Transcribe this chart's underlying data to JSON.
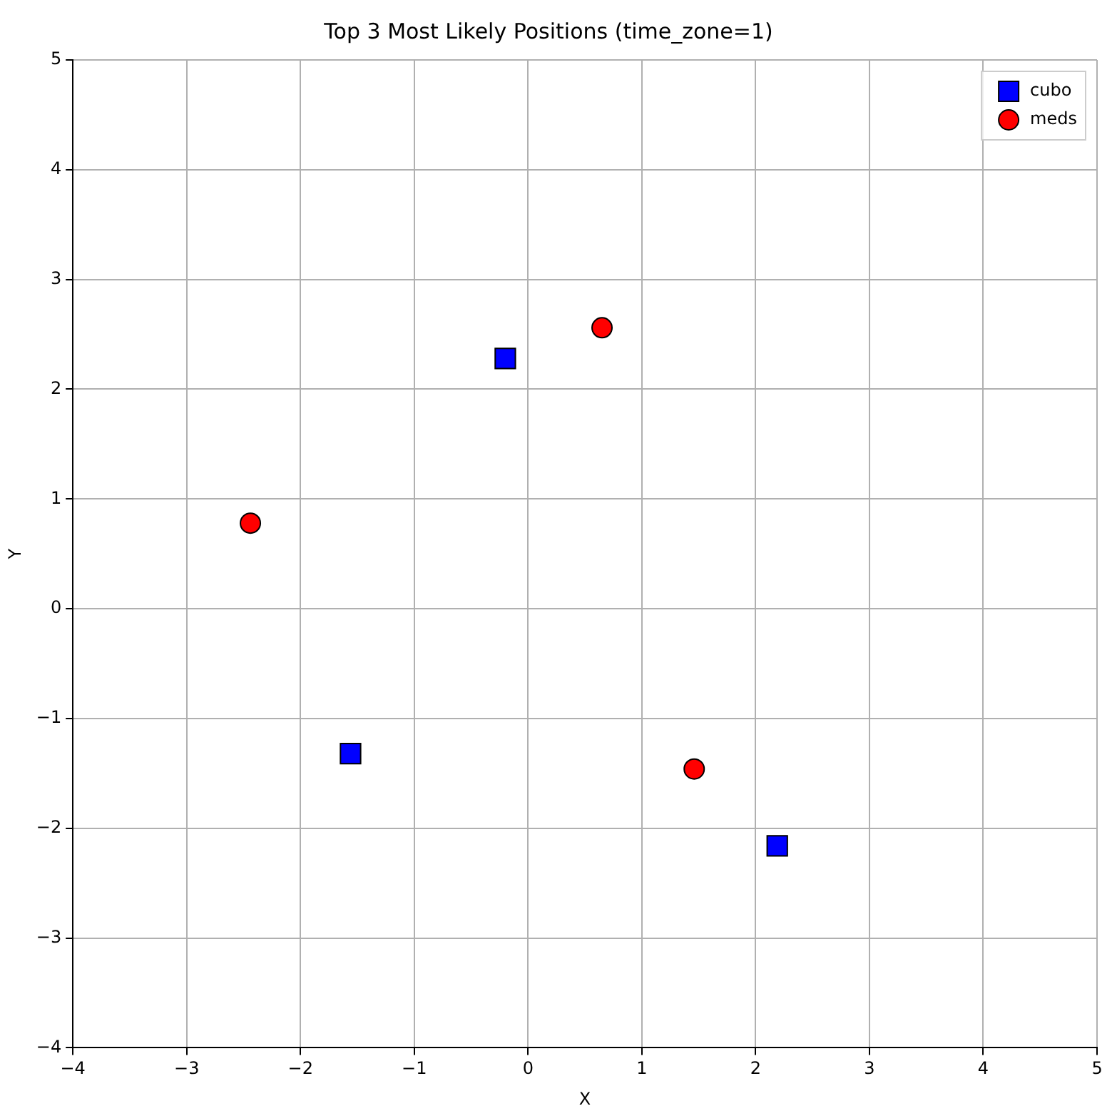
{
  "chart_data": {
    "type": "scatter",
    "title": "Top 3 Most Likely Positions (time_zone=1)",
    "xlabel": "X",
    "ylabel": "Y",
    "xlim": [
      -4,
      5
    ],
    "ylim": [
      -4,
      5
    ],
    "xticks": [
      -4,
      -3,
      -2,
      -1,
      0,
      1,
      2,
      3,
      4,
      5
    ],
    "yticks": [
      -4,
      -3,
      -2,
      -1,
      0,
      1,
      2,
      3,
      4,
      5
    ],
    "grid": true,
    "legend": "top right",
    "series": [
      {
        "name": "cubo",
        "color": "#0000ff",
        "marker": "square",
        "x": [
          -0.2,
          -1.56,
          2.19
        ],
        "values": [
          2.28,
          -1.32,
          -2.16
        ]
      },
      {
        "name": "meds",
        "color": "#ff0000",
        "marker": "circle",
        "x": [
          0.65,
          -2.44,
          1.46
        ],
        "values": [
          2.56,
          0.78,
          -1.46
        ]
      }
    ]
  }
}
